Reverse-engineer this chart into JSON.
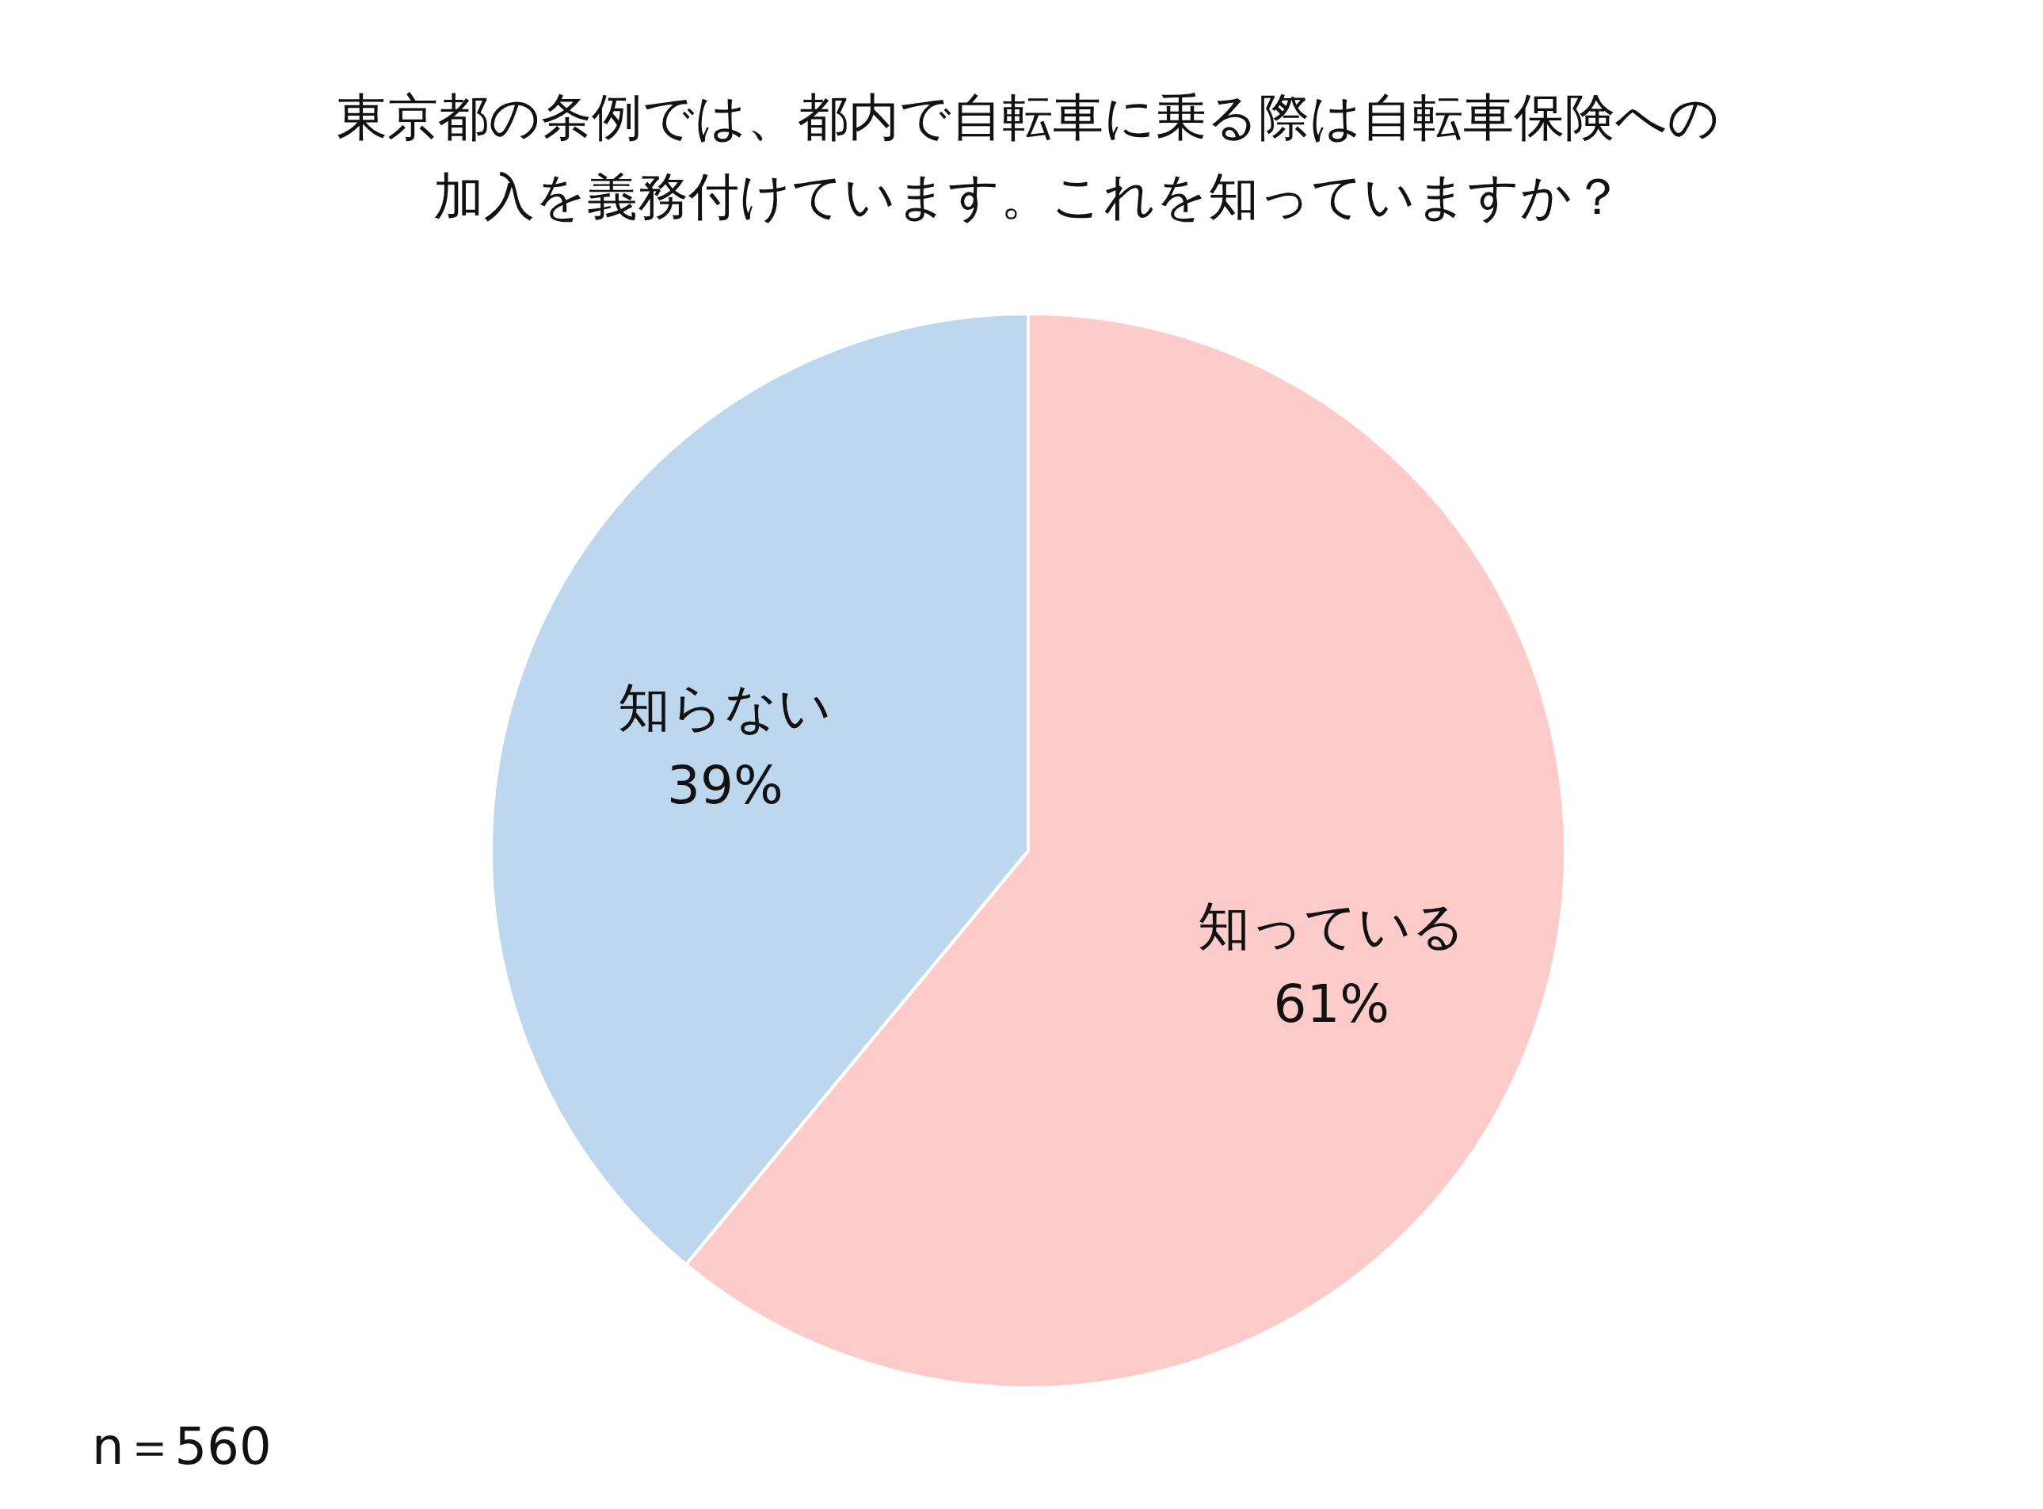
{
  "chart_data": {
    "type": "pie",
    "title": "東京都の条例では、都内で自転車に乗る際は自転車保険への加入を義務付けています。これを知っていますか？",
    "categories": [
      "知っている",
      "知らない"
    ],
    "values": [
      61,
      39
    ],
    "colors": [
      "#fecbcb",
      "#bdd7ee"
    ],
    "value_labels": [
      "61%",
      "39%"
    ],
    "annotations": [
      "n＝560"
    ]
  }
}
